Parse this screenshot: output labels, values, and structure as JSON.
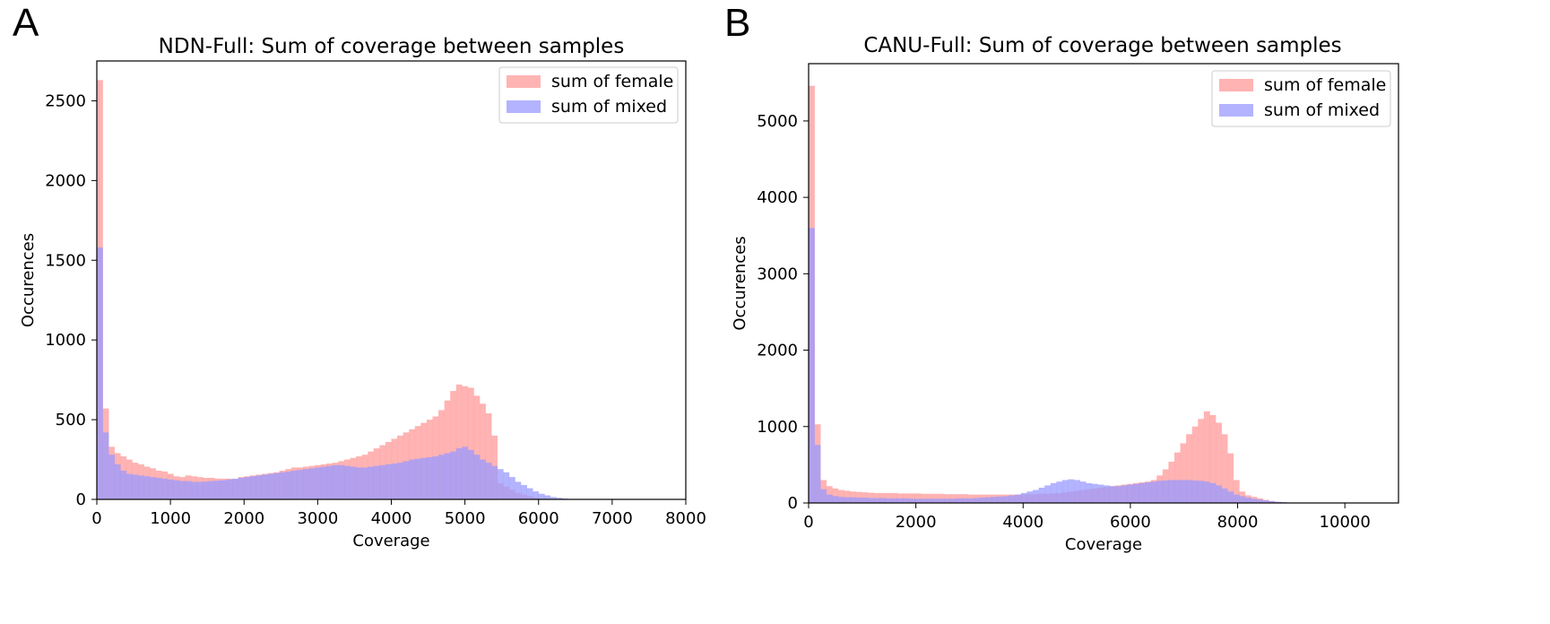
{
  "chart_data": [
    {
      "panel_label": "A",
      "type": "histogram",
      "title": "NDN-Full: Sum of coverage between samples",
      "xlabel": "Coverage",
      "ylabel": "Occurences",
      "xlim": [
        0,
        8000
      ],
      "ylim": [
        0,
        2750
      ],
      "xticks": [
        0,
        1000,
        2000,
        3000,
        4000,
        5000,
        6000,
        7000,
        8000
      ],
      "yticks": [
        0,
        500,
        1000,
        1500,
        2000,
        2500
      ],
      "bin_width": 80,
      "legend_position": "top-right",
      "series": [
        {
          "name": "sum of female",
          "color": "#ff9999",
          "values": [
            2630,
            570,
            330,
            290,
            270,
            250,
            230,
            220,
            205,
            195,
            180,
            175,
            160,
            145,
            140,
            150,
            145,
            140,
            135,
            135,
            130,
            130,
            130,
            125,
            140,
            145,
            150,
            155,
            160,
            165,
            170,
            180,
            190,
            200,
            200,
            205,
            210,
            215,
            220,
            225,
            230,
            240,
            250,
            260,
            270,
            280,
            300,
            320,
            340,
            360,
            380,
            400,
            420,
            440,
            460,
            480,
            500,
            520,
            560,
            620,
            680,
            720,
            710,
            700,
            650,
            600,
            540,
            400,
            100,
            80,
            60,
            40,
            30,
            20,
            10,
            5,
            5,
            3,
            2,
            1
          ]
        },
        {
          "name": "sum of mixed",
          "color": "#9999ff",
          "values": [
            1580,
            420,
            280,
            220,
            180,
            160,
            155,
            150,
            145,
            140,
            135,
            130,
            125,
            120,
            115,
            115,
            110,
            110,
            112,
            115,
            118,
            120,
            125,
            130,
            135,
            140,
            145,
            150,
            155,
            160,
            165,
            170,
            175,
            180,
            185,
            190,
            195,
            200,
            205,
            210,
            215,
            215,
            210,
            205,
            200,
            200,
            205,
            210,
            215,
            220,
            225,
            230,
            240,
            250,
            255,
            260,
            265,
            270,
            280,
            290,
            300,
            320,
            330,
            310,
            280,
            250,
            230,
            210,
            190,
            170,
            140,
            110,
            90,
            70,
            50,
            35,
            25,
            15,
            10,
            5
          ]
        }
      ]
    },
    {
      "panel_label": "B",
      "type": "histogram",
      "title": "CANU-Full: Sum of coverage between samples",
      "xlabel": "Coverage",
      "ylabel": "Occurences",
      "xlim": [
        0,
        11000
      ],
      "ylim": [
        0,
        5750
      ],
      "xticks": [
        0,
        2000,
        4000,
        6000,
        8000,
        10000
      ],
      "yticks": [
        0,
        1000,
        2000,
        3000,
        4000,
        5000
      ],
      "bin_width": 110,
      "legend_position": "top-right",
      "series": [
        {
          "name": "sum of female",
          "color": "#ff9999",
          "values": [
            5460,
            1030,
            300,
            220,
            190,
            170,
            160,
            150,
            145,
            140,
            135,
            130,
            130,
            130,
            130,
            125,
            125,
            125,
            125,
            120,
            120,
            120,
            120,
            115,
            115,
            115,
            115,
            110,
            110,
            110,
            110,
            110,
            110,
            110,
            110,
            110,
            110,
            115,
            115,
            120,
            120,
            125,
            130,
            140,
            150,
            160,
            170,
            180,
            190,
            200,
            210,
            220,
            230,
            240,
            250,
            260,
            270,
            280,
            300,
            360,
            440,
            540,
            660,
            780,
            900,
            1000,
            1100,
            1200,
            1150,
            1050,
            900,
            650,
            300,
            150,
            100,
            80,
            60,
            40,
            25,
            15,
            10,
            5,
            3,
            2,
            1,
            0,
            0,
            0,
            0,
            0,
            0,
            0,
            0,
            0,
            0,
            0,
            0,
            0,
            0,
            0
          ]
        },
        {
          "name": "sum of mixed",
          "color": "#9999ff",
          "values": [
            3600,
            760,
            180,
            110,
            90,
            80,
            75,
            75,
            70,
            70,
            65,
            65,
            65,
            60,
            60,
            60,
            60,
            55,
            55,
            55,
            55,
            55,
            55,
            55,
            55,
            60,
            60,
            60,
            65,
            70,
            75,
            80,
            85,
            90,
            100,
            110,
            130,
            150,
            170,
            200,
            230,
            260,
            280,
            300,
            310,
            300,
            280,
            260,
            250,
            240,
            230,
            220,
            220,
            230,
            240,
            250,
            260,
            270,
            280,
            290,
            295,
            300,
            300,
            300,
            300,
            295,
            290,
            280,
            260,
            230,
            190,
            150,
            110,
            90,
            70,
            55,
            45,
            35,
            25,
            15,
            10,
            5,
            3,
            2,
            1,
            0,
            0,
            0,
            0,
            0,
            0,
            0,
            0,
            0,
            0,
            0,
            0,
            0,
            0,
            0
          ]
        }
      ]
    }
  ]
}
